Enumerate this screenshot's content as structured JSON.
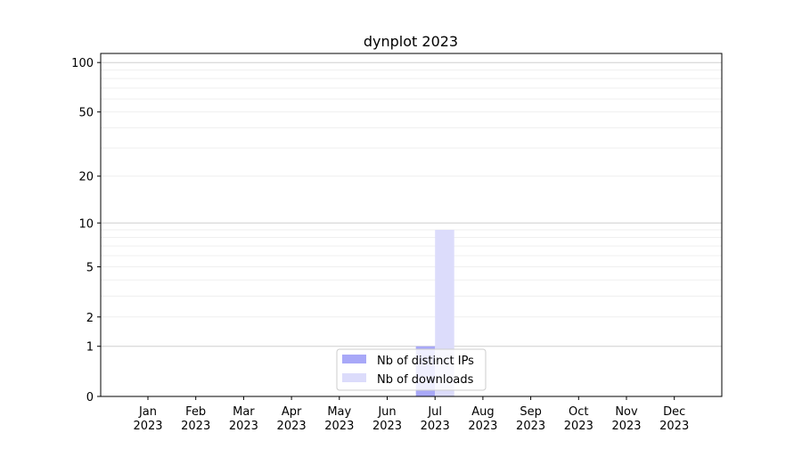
{
  "chart_data": {
    "type": "bar",
    "title": "dynplot 2023",
    "xlabel": "",
    "ylabel": "",
    "yscale": "log(1+y)",
    "ylim": [
      0,
      113
    ],
    "yticks": [
      0,
      1,
      2,
      5,
      10,
      20,
      50,
      100
    ],
    "ytick_labels": [
      "0",
      "1",
      "2",
      "5",
      "10",
      "20",
      "50",
      "100"
    ],
    "grid": true,
    "legend_position": "lower center",
    "categories": [
      "Jan\n2023",
      "Feb\n2023",
      "Mar\n2023",
      "Apr\n2023",
      "May\n2023",
      "Jun\n2023",
      "Jul\n2023",
      "Aug\n2023",
      "Sep\n2023",
      "Oct\n2023",
      "Nov\n2023",
      "Dec\n2023"
    ],
    "series": [
      {
        "name": "Nb of distinct IPs",
        "color": "#a8a8f8",
        "values": [
          0,
          0,
          0,
          0,
          0,
          0,
          1,
          0,
          0,
          0,
          0,
          0
        ]
      },
      {
        "name": "Nb of downloads",
        "color": "#dcdcfb",
        "values": [
          0,
          0,
          0,
          0,
          0,
          0,
          9,
          0,
          0,
          0,
          0,
          0
        ]
      }
    ]
  }
}
